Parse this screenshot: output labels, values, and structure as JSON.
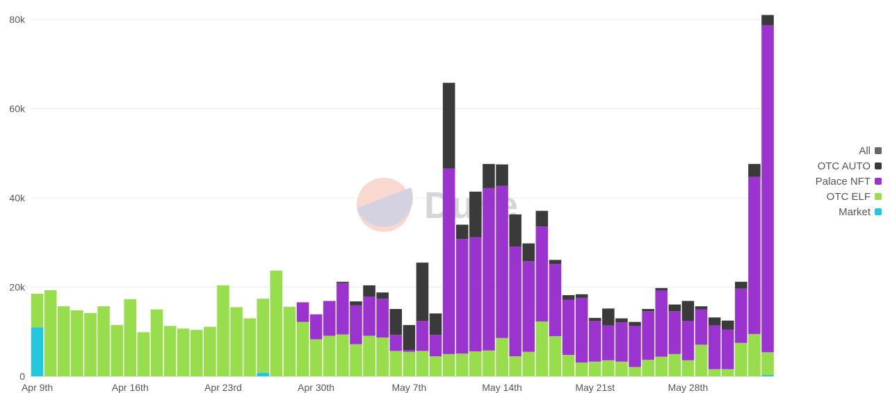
{
  "chart_data": {
    "type": "bar",
    "stacked": true,
    "watermark": "Dune",
    "ylim": [
      0,
      80000
    ],
    "yticks": [
      {
        "value": 0,
        "label": "0"
      },
      {
        "value": 20000,
        "label": "20k"
      },
      {
        "value": 40000,
        "label": "40k"
      },
      {
        "value": 60000,
        "label": "60k"
      },
      {
        "value": 80000,
        "label": "80k"
      }
    ],
    "xticks": [
      {
        "index": 0,
        "label": "Apr 9th"
      },
      {
        "index": 7,
        "label": "Apr 16th"
      },
      {
        "index": 14,
        "label": "Apr 23rd"
      },
      {
        "index": 21,
        "label": "Apr 30th"
      },
      {
        "index": 28,
        "label": "May 7th"
      },
      {
        "index": 35,
        "label": "May 14th"
      },
      {
        "index": 42,
        "label": "May 21st"
      },
      {
        "index": 49,
        "label": "May 28th"
      }
    ],
    "legend_position": "right",
    "legend": [
      {
        "name": "All",
        "color": "#666666"
      },
      {
        "name": "OTC AUTO",
        "color": "#3a3a3a"
      },
      {
        "name": "Palace NFT",
        "color": "#9b34cf"
      },
      {
        "name": "OTC ELF",
        "color": "#97dd4c"
      },
      {
        "name": "Market",
        "color": "#25c7dc"
      }
    ],
    "categories": [
      "Apr 9",
      "Apr 10",
      "Apr 11",
      "Apr 12",
      "Apr 13",
      "Apr 14",
      "Apr 15",
      "Apr 16",
      "Apr 17",
      "Apr 18",
      "Apr 19",
      "Apr 20",
      "Apr 21",
      "Apr 22",
      "Apr 23",
      "Apr 24",
      "Apr 25",
      "Apr 26",
      "Apr 27",
      "Apr 28",
      "Apr 29",
      "Apr 30",
      "May 1",
      "May 2",
      "May 3",
      "May 4",
      "May 5",
      "May 6",
      "May 7",
      "May 8",
      "May 9",
      "May 10",
      "May 11",
      "May 12",
      "May 13",
      "May 14",
      "May 15",
      "May 16",
      "May 17",
      "May 18",
      "May 19",
      "May 20",
      "May 21",
      "May 22",
      "May 23",
      "May 24",
      "May 25",
      "May 26",
      "May 27",
      "May 28",
      "May 29",
      "May 30",
      "May 31",
      "Jun 1",
      "Jun 2",
      "Jun 3"
    ],
    "series": [
      {
        "name": "Market",
        "color": "#25c7dc",
        "values": [
          11000,
          0,
          0,
          0,
          0,
          0,
          0,
          0,
          0,
          0,
          0,
          0,
          0,
          0,
          0,
          0,
          0,
          800,
          0,
          0,
          0,
          0,
          0,
          0,
          0,
          0,
          0,
          0,
          0,
          0,
          0,
          0,
          0,
          0,
          0,
          0,
          0,
          0,
          0,
          0,
          0,
          0,
          0,
          0,
          0,
          0,
          0,
          0,
          0,
          0,
          0,
          0,
          0,
          0,
          0,
          300
        ]
      },
      {
        "name": "OTC ELF",
        "color": "#97dd4c",
        "values": [
          7500,
          19300,
          15700,
          14800,
          14200,
          15700,
          11500,
          17300,
          9900,
          15000,
          11300,
          10700,
          10400,
          11100,
          20400,
          15500,
          13000,
          16600,
          23700,
          15600,
          12200,
          8300,
          9100,
          9400,
          7200,
          9100,
          8700,
          5700,
          5500,
          5700,
          4500,
          5000,
          5100,
          5600,
          5800,
          8600,
          4500,
          5500,
          12300,
          9000,
          4800,
          3100,
          3300,
          3600,
          3300,
          2100,
          3700,
          4400,
          5000,
          3600,
          7100,
          1600,
          1600,
          7500,
          9500,
          5100
        ]
      },
      {
        "name": "Palace NFT",
        "color": "#9b34cf",
        "values": [
          0,
          0,
          0,
          0,
          0,
          0,
          0,
          0,
          0,
          0,
          0,
          0,
          0,
          0,
          0,
          0,
          0,
          0,
          0,
          0,
          4400,
          5600,
          7800,
          11500,
          8700,
          8800,
          8700,
          3600,
          400,
          6700,
          4800,
          41600,
          25700,
          25600,
          36400,
          34100,
          24600,
          20300,
          21300,
          16200,
          12400,
          14500,
          9100,
          7800,
          8800,
          9200,
          10900,
          14900,
          9600,
          8800,
          7900,
          9800,
          8900,
          12200,
          35200,
          73300
        ]
      },
      {
        "name": "OTC AUTO",
        "color": "#3a3a3a",
        "values": [
          0,
          0,
          0,
          0,
          0,
          0,
          0,
          0,
          0,
          0,
          0,
          0,
          0,
          0,
          0,
          0,
          0,
          0,
          0,
          0,
          0,
          0,
          0,
          300,
          900,
          2500,
          1400,
          5800,
          5600,
          13100,
          4800,
          19200,
          3200,
          10200,
          5400,
          4800,
          7200,
          4000,
          3500,
          900,
          1000,
          800,
          700,
          3800,
          900,
          900,
          500,
          500,
          1500,
          4500,
          700,
          1800,
          2000,
          1500,
          2900,
          2300
        ]
      }
    ]
  }
}
